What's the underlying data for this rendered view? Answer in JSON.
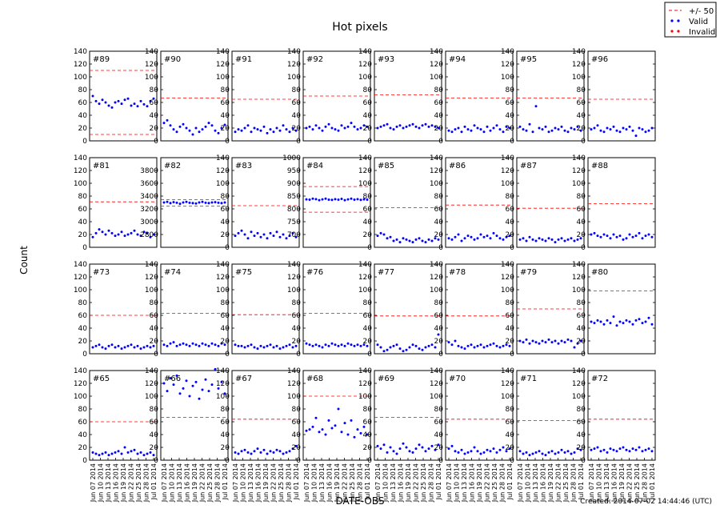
{
  "page": {
    "title": "Hot pixels",
    "ylabel": "Count",
    "xlabel": "DATE-OBS",
    "footer": "Created: 2014-07-02 14:44:46 (UTC)"
  },
  "legend": {
    "placement": "top-right",
    "entries": [
      {
        "label": "+/- 50",
        "kind": "dashed-line",
        "color": "#ff0000"
      },
      {
        "label": "Valid",
        "kind": "marker",
        "color": "#0000ff"
      },
      {
        "label": "Invalid",
        "kind": "marker",
        "color": "#ff0000"
      }
    ]
  },
  "x_tick_labels": [
    "Jun 07 2014",
    "Jun 10 2014",
    "Jun 13 2014",
    "Jun 16 2014",
    "Jun 19 2014",
    "Jun 22 2014",
    "Jun 25 2014",
    "Jun 28 2014",
    "Jul 01 2014"
  ],
  "chart_data": [
    {
      "type": "scatter",
      "title": "#89",
      "ylim": [
        0,
        140
      ],
      "yticks": [
        0,
        20,
        40,
        60,
        80,
        100,
        120,
        140
      ],
      "thresholds": [
        110,
        10
      ],
      "values": [
        70,
        62,
        58,
        64,
        60,
        55,
        52,
        60,
        62,
        58,
        64,
        66,
        55,
        58,
        54,
        62,
        57,
        54,
        62,
        66
      ]
    },
    {
      "type": "scatter",
      "title": "#90",
      "ylim": [
        0,
        140
      ],
      "yticks": [
        0,
        20,
        40,
        60,
        80,
        100,
        120,
        140
      ],
      "thresholds": [
        67
      ],
      "values": [
        28,
        32,
        24,
        18,
        14,
        22,
        26,
        20,
        16,
        10,
        20,
        14,
        18,
        22,
        28,
        24,
        16,
        12,
        20,
        25
      ]
    },
    {
      "type": "scatter",
      "title": "#91",
      "ylim": [
        0,
        140
      ],
      "yticks": [
        0,
        20,
        40,
        60,
        80,
        100,
        120,
        140
      ],
      "thresholds": [
        65
      ],
      "values": [
        14,
        18,
        16,
        20,
        24,
        14,
        20,
        18,
        16,
        22,
        12,
        18,
        14,
        20,
        16,
        24,
        18,
        14,
        20,
        16
      ]
    },
    {
      "type": "scatter",
      "title": "#92",
      "ylim": [
        0,
        140
      ],
      "yticks": [
        0,
        20,
        40,
        60,
        80,
        100,
        120,
        140
      ],
      "thresholds": [
        70
      ],
      "values": [
        20,
        22,
        18,
        24,
        20,
        16,
        22,
        26,
        20,
        18,
        16,
        24,
        20,
        22,
        28,
        22,
        18,
        20,
        24,
        22
      ]
    },
    {
      "type": "scatter",
      "title": "#93",
      "ylim": [
        0,
        140
      ],
      "yticks": [
        0,
        20,
        40,
        60,
        80,
        100,
        120,
        140
      ],
      "thresholds": [
        72
      ],
      "values": [
        20,
        22,
        24,
        26,
        20,
        18,
        22,
        24,
        20,
        22,
        24,
        26,
        22,
        20,
        24,
        26,
        22,
        24,
        22,
        20
      ]
    },
    {
      "type": "scatter",
      "title": "#94",
      "ylim": [
        0,
        140
      ],
      "yticks": [
        0,
        20,
        40,
        60,
        80,
        100,
        120,
        140
      ],
      "thresholds": [
        67
      ],
      "values": [
        16,
        14,
        18,
        20,
        14,
        22,
        18,
        16,
        24,
        20,
        18,
        14,
        22,
        16,
        20,
        24,
        18,
        14,
        22,
        20
      ]
    },
    {
      "type": "scatter",
      "title": "#95",
      "ylim": [
        0,
        140
      ],
      "yticks": [
        0,
        20,
        40,
        60,
        80,
        100,
        120,
        140
      ],
      "thresholds": [
        67
      ],
      "values": [
        22,
        18,
        16,
        26,
        14,
        54,
        20,
        18,
        22,
        14,
        16,
        20,
        18,
        22,
        16,
        14,
        20,
        18,
        22,
        16
      ]
    },
    {
      "type": "scatter",
      "title": "#96",
      "ylim": [
        0,
        140
      ],
      "yticks": [
        0,
        20,
        40,
        60,
        80,
        100,
        120,
        140
      ],
      "thresholds": [
        65
      ],
      "values": [
        18,
        20,
        24,
        16,
        14,
        20,
        18,
        22,
        16,
        14,
        20,
        18,
        22,
        16,
        8,
        20,
        18,
        14,
        16,
        20
      ]
    },
    {
      "type": "scatter",
      "title": "#81",
      "ylim": [
        0,
        140
      ],
      "yticks": [
        0,
        20,
        40,
        60,
        80,
        100,
        120,
        140
      ],
      "thresholds": [
        71
      ],
      "values": [
        16,
        22,
        28,
        24,
        20,
        26,
        22,
        18,
        20,
        24,
        18,
        20,
        22,
        26,
        20,
        18,
        24,
        22,
        16,
        20
      ]
    },
    {
      "type": "scatter",
      "title": "#82",
      "ylim": [
        2600,
        4000
      ],
      "yticks": [
        2800,
        3000,
        3200,
        3400,
        3600,
        3800
      ],
      "thresholds": [
        3342,
        3244
      ],
      "values": [
        3300,
        3310,
        3290,
        3305,
        3295,
        3280,
        3300,
        3310,
        3295,
        3290,
        3285,
        3300,
        3310,
        3295,
        3290,
        3300,
        3305,
        3295,
        3290,
        3300
      ]
    },
    {
      "type": "scatter",
      "title": "#83",
      "ylim": [
        0,
        140
      ],
      "yticks": [
        0,
        20,
        40,
        60,
        80,
        100,
        120,
        140
      ],
      "thresholds": [
        65
      ],
      "values": [
        18,
        22,
        26,
        20,
        14,
        24,
        18,
        22,
        16,
        20,
        14,
        22,
        18,
        24,
        16,
        20,
        14,
        18,
        22,
        16
      ]
    },
    {
      "type": "scatter",
      "title": "#84",
      "ylim": [
        650,
        1000
      ],
      "yticks": [
        700,
        750,
        800,
        850,
        900,
        950,
        1000
      ],
      "thresholds": [
        887,
        787
      ],
      "values": [
        837,
        836,
        840,
        838,
        834,
        837,
        840,
        836,
        835,
        838,
        836,
        839,
        834,
        837,
        840,
        836,
        838,
        835,
        837,
        836
      ]
    },
    {
      "type": "scatter",
      "title": "#85",
      "ylim": [
        0,
        140
      ],
      "yticks": [
        0,
        20,
        40,
        60,
        80,
        100,
        120,
        140
      ],
      "thresholds": [
        62
      ],
      "values": [
        18,
        22,
        20,
        14,
        16,
        10,
        12,
        8,
        14,
        12,
        10,
        8,
        12,
        14,
        10,
        8,
        12,
        10,
        14,
        12
      ]
    },
    {
      "type": "scatter",
      "title": "#86",
      "ylim": [
        0,
        140
      ],
      "yticks": [
        0,
        20,
        40,
        60,
        80,
        100,
        120,
        140
      ],
      "thresholds": [
        66
      ],
      "values": [
        14,
        12,
        16,
        20,
        10,
        14,
        18,
        16,
        12,
        14,
        20,
        16,
        18,
        14,
        22,
        18,
        14,
        12,
        16,
        18
      ]
    },
    {
      "type": "scatter",
      "title": "#87",
      "ylim": [
        0,
        140
      ],
      "yticks": [
        0,
        20,
        40,
        60,
        80,
        100,
        120,
        140
      ],
      "thresholds": [
        61
      ],
      "values": [
        12,
        14,
        10,
        16,
        12,
        10,
        14,
        12,
        10,
        14,
        12,
        8,
        12,
        14,
        10,
        12,
        14,
        10,
        12,
        14
      ]
    },
    {
      "type": "scatter",
      "title": "#88",
      "ylim": [
        0,
        140
      ],
      "yticks": [
        0,
        20,
        40,
        60,
        80,
        100,
        120,
        140
      ],
      "thresholds": [
        68
      ],
      "values": [
        20,
        22,
        18,
        16,
        20,
        18,
        14,
        20,
        16,
        18,
        12,
        14,
        20,
        16,
        18,
        22,
        14,
        18,
        20,
        16
      ]
    },
    {
      "type": "scatter",
      "title": "#73",
      "ylim": [
        0,
        140
      ],
      "yticks": [
        0,
        20,
        40,
        60,
        80,
        100,
        120,
        140
      ],
      "thresholds": [
        60
      ],
      "values": [
        10,
        12,
        14,
        10,
        8,
        12,
        14,
        10,
        12,
        8,
        10,
        12,
        14,
        10,
        12,
        8,
        10,
        12,
        10,
        12
      ]
    },
    {
      "type": "scatter",
      "title": "#74",
      "ylim": [
        0,
        140
      ],
      "yticks": [
        0,
        20,
        40,
        60,
        80,
        100,
        120,
        140
      ],
      "thresholds": [
        63
      ],
      "values": [
        14,
        12,
        16,
        18,
        12,
        14,
        16,
        14,
        12,
        16,
        14,
        12,
        16,
        14,
        12,
        16,
        14,
        12,
        16,
        14
      ]
    },
    {
      "type": "scatter",
      "title": "#75",
      "ylim": [
        0,
        140
      ],
      "yticks": [
        0,
        20,
        40,
        60,
        80,
        100,
        120,
        140
      ],
      "thresholds": [
        61
      ],
      "values": [
        14,
        12,
        12,
        10,
        12,
        14,
        10,
        8,
        12,
        10,
        12,
        14,
        10,
        12,
        8,
        10,
        12,
        14,
        10,
        12
      ]
    },
    {
      "type": "scatter",
      "title": "#76",
      "ylim": [
        0,
        140
      ],
      "yticks": [
        0,
        20,
        40,
        60,
        80,
        100,
        120,
        140
      ],
      "thresholds": [
        63
      ],
      "values": [
        16,
        14,
        12,
        14,
        12,
        10,
        14,
        12,
        16,
        14,
        12,
        14,
        12,
        16,
        14,
        12,
        14,
        12,
        14,
        12
      ]
    },
    {
      "type": "scatter",
      "title": "#77",
      "ylim": [
        0,
        140
      ],
      "yticks": [
        0,
        20,
        40,
        60,
        80,
        100,
        120,
        140
      ],
      "thresholds": [
        59
      ],
      "values": [
        14,
        10,
        4,
        6,
        10,
        12,
        14,
        8,
        4,
        6,
        10,
        14,
        12,
        8,
        6,
        10,
        12,
        14,
        10,
        30
      ]
    },
    {
      "type": "scatter",
      "title": "#78",
      "ylim": [
        0,
        140
      ],
      "yticks": [
        0,
        20,
        40,
        60,
        80,
        100,
        120,
        140
      ],
      "thresholds": [
        59
      ],
      "values": [
        18,
        14,
        20,
        12,
        10,
        8,
        12,
        14,
        10,
        12,
        14,
        10,
        12,
        14,
        16,
        12,
        10,
        12,
        14,
        12
      ]
    },
    {
      "type": "scatter",
      "title": "#79",
      "ylim": [
        0,
        140
      ],
      "yticks": [
        0,
        20,
        40,
        60,
        80,
        100,
        120,
        140
      ],
      "thresholds": [
        70
      ],
      "values": [
        20,
        18,
        22,
        16,
        20,
        18,
        16,
        20,
        18,
        22,
        18,
        20,
        16,
        20,
        18,
        22,
        20,
        10,
        16,
        20
      ]
    },
    {
      "type": "scatter",
      "title": "#80",
      "ylim": [
        0,
        140
      ],
      "yticks": [
        0,
        20,
        40,
        60,
        80,
        100,
        120,
        140
      ],
      "thresholds": [
        98
      ],
      "values": [
        50,
        48,
        52,
        50,
        46,
        52,
        48,
        58,
        44,
        50,
        48,
        52,
        50,
        46,
        52,
        54,
        48,
        50,
        56,
        46
      ]
    },
    {
      "type": "scatter",
      "title": "#65",
      "ylim": [
        0,
        140
      ],
      "yticks": [
        0,
        20,
        40,
        60,
        80,
        100,
        120,
        140
      ],
      "thresholds": [
        60
      ],
      "values": [
        12,
        10,
        8,
        10,
        12,
        8,
        10,
        12,
        14,
        10,
        20,
        12,
        14,
        16,
        10,
        12,
        8,
        10,
        12,
        8
      ]
    },
    {
      "type": "scatter",
      "title": "#66",
      "ylim": [
        0,
        140
      ],
      "yticks": [
        0,
        20,
        40,
        60,
        80,
        100,
        120,
        140
      ],
      "thresholds": [
        67
      ],
      "values": [
        120,
        108,
        128,
        118,
        132,
        104,
        112,
        124,
        100,
        116,
        122,
        96,
        110,
        126,
        108,
        118,
        142,
        112,
        122,
        104
      ]
    },
    {
      "type": "scatter",
      "title": "#67",
      "ylim": [
        0,
        140
      ],
      "yticks": [
        0,
        20,
        40,
        60,
        80,
        100,
        120,
        140
      ],
      "thresholds": [
        64
      ],
      "values": [
        12,
        10,
        14,
        16,
        12,
        10,
        14,
        18,
        12,
        16,
        10,
        14,
        12,
        16,
        14,
        10,
        12,
        14,
        18,
        22
      ]
    },
    {
      "type": "scatter",
      "title": "#68",
      "ylim": [
        0,
        140
      ],
      "yticks": [
        0,
        20,
        40,
        60,
        80,
        100,
        120,
        140
      ],
      "thresholds": [
        100
      ],
      "values": [
        46,
        48,
        52,
        66,
        44,
        48,
        40,
        62,
        50,
        54,
        80,
        44,
        58,
        40,
        62,
        36,
        48,
        42,
        52,
        40
      ]
    },
    {
      "type": "scatter",
      "title": "#69",
      "ylim": [
        0,
        140
      ],
      "yticks": [
        0,
        20,
        40,
        60,
        80,
        100,
        120,
        140
      ],
      "thresholds": [
        67
      ],
      "values": [
        22,
        18,
        24,
        12,
        20,
        14,
        10,
        18,
        26,
        20,
        14,
        12,
        18,
        24,
        20,
        14,
        18,
        22,
        16,
        24
      ]
    },
    {
      "type": "scatter",
      "title": "#70",
      "ylim": [
        0,
        140
      ],
      "yticks": [
        0,
        20,
        40,
        60,
        80,
        100,
        120,
        140
      ],
      "thresholds": [
        64
      ],
      "values": [
        18,
        22,
        14,
        12,
        16,
        10,
        12,
        14,
        20,
        14,
        10,
        12,
        16,
        14,
        18,
        12,
        16,
        20,
        14,
        18
      ]
    },
    {
      "type": "scatter",
      "title": "#71",
      "ylim": [
        0,
        140
      ],
      "yticks": [
        0,
        20,
        40,
        60,
        80,
        100,
        120,
        140
      ],
      "thresholds": [
        62
      ],
      "values": [
        14,
        10,
        12,
        8,
        10,
        12,
        14,
        10,
        8,
        12,
        14,
        10,
        12,
        16,
        12,
        14,
        10,
        12,
        18,
        16
      ]
    },
    {
      "type": "scatter",
      "title": "#72",
      "ylim": [
        0,
        140
      ],
      "yticks": [
        0,
        20,
        40,
        60,
        80,
        100,
        120,
        140
      ],
      "thresholds": [
        64
      ],
      "values": [
        16,
        18,
        20,
        14,
        16,
        12,
        18,
        16,
        14,
        18,
        20,
        16,
        14,
        18,
        16,
        20,
        14,
        16,
        18,
        14
      ]
    }
  ]
}
